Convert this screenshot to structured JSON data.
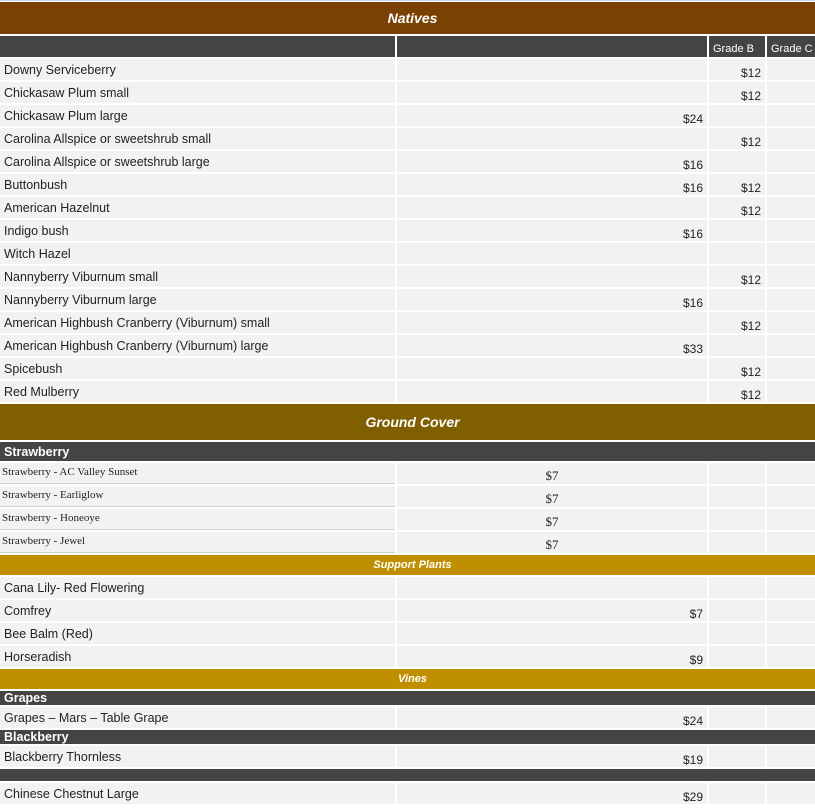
{
  "natives": {
    "title": "Natives",
    "color": "#7a4104",
    "columns": [
      "",
      "",
      "Grade B",
      "Grade C"
    ],
    "rows": [
      {
        "name": "Downy Serviceberry",
        "a": "",
        "b": "$12",
        "c": ""
      },
      {
        "name": "Chickasaw Plum small",
        "a": "",
        "b": "$12",
        "c": ""
      },
      {
        "name": "Chickasaw Plum large",
        "a": "$24",
        "b": "",
        "c": ""
      },
      {
        "name": "Carolina Allspice or sweetshrub small",
        "a": "",
        "b": "$12",
        "c": ""
      },
      {
        "name": "Carolina Allspice or sweetshrub large",
        "a": "$16",
        "b": "",
        "c": ""
      },
      {
        "name": "Buttonbush",
        "a": "$16",
        "b": "$12",
        "c": ""
      },
      {
        "name": "American Hazelnut",
        "a": "",
        "b": "$12",
        "c": ""
      },
      {
        "name": "Indigo bush",
        "a": "$16",
        "b": "",
        "c": ""
      },
      {
        "name": "Witch Hazel",
        "a": "",
        "b": "",
        "c": ""
      },
      {
        "name": "Nannyberry Viburnum small",
        "a": "",
        "b": "$12",
        "c": ""
      },
      {
        "name": "Nannyberry Viburnum large",
        "a": "$16",
        "b": "",
        "c": ""
      },
      {
        "name": "American Highbush Cranberry (Viburnum) small",
        "a": "",
        "b": "$12",
        "c": ""
      },
      {
        "name": "American Highbush Cranberry (Viburnum) large",
        "a": "$33",
        "b": "",
        "c": ""
      },
      {
        "name": "Spicebush",
        "a": "",
        "b": "$12",
        "c": ""
      },
      {
        "name": "Red Mulberry",
        "a": "",
        "b": "$12",
        "c": ""
      }
    ]
  },
  "ground_cover": {
    "title": "Ground Cover",
    "color": "#7f5f00",
    "strawberry": {
      "label": "Strawberry",
      "rows": [
        {
          "name": "Strawberry - AC Valley Sunset",
          "a": "$7"
        },
        {
          "name": "Strawberry - Earliglow",
          "a": "$7"
        },
        {
          "name": "Strawberry - Honeoye",
          "a": "$7"
        },
        {
          "name": "Strawberry - Jewel",
          "a": "$7"
        }
      ]
    }
  },
  "support_plants": {
    "title": "Support Plants",
    "color": "#bf8f00",
    "rows": [
      {
        "name": "Cana Lily- Red Flowering",
        "a": ""
      },
      {
        "name": "Comfrey",
        "a": "$7"
      },
      {
        "name": "Bee Balm (Red)",
        "a": ""
      },
      {
        "name": "Horseradish",
        "a": "$9"
      }
    ]
  },
  "vines": {
    "title": "Vines",
    "color": "#bf8f00",
    "grapes": {
      "label": "Grapes",
      "rows": [
        {
          "name": "Grapes – Mars – Table Grape",
          "a": "$24"
        }
      ]
    },
    "blackberry": {
      "label": "Blackberry",
      "rows": [
        {
          "name": "Blackberry Thornless",
          "a": "$19"
        }
      ]
    },
    "other": {
      "label": "",
      "rows": [
        {
          "name": "Chinese Chestnut Large",
          "a": "$29"
        }
      ]
    }
  }
}
